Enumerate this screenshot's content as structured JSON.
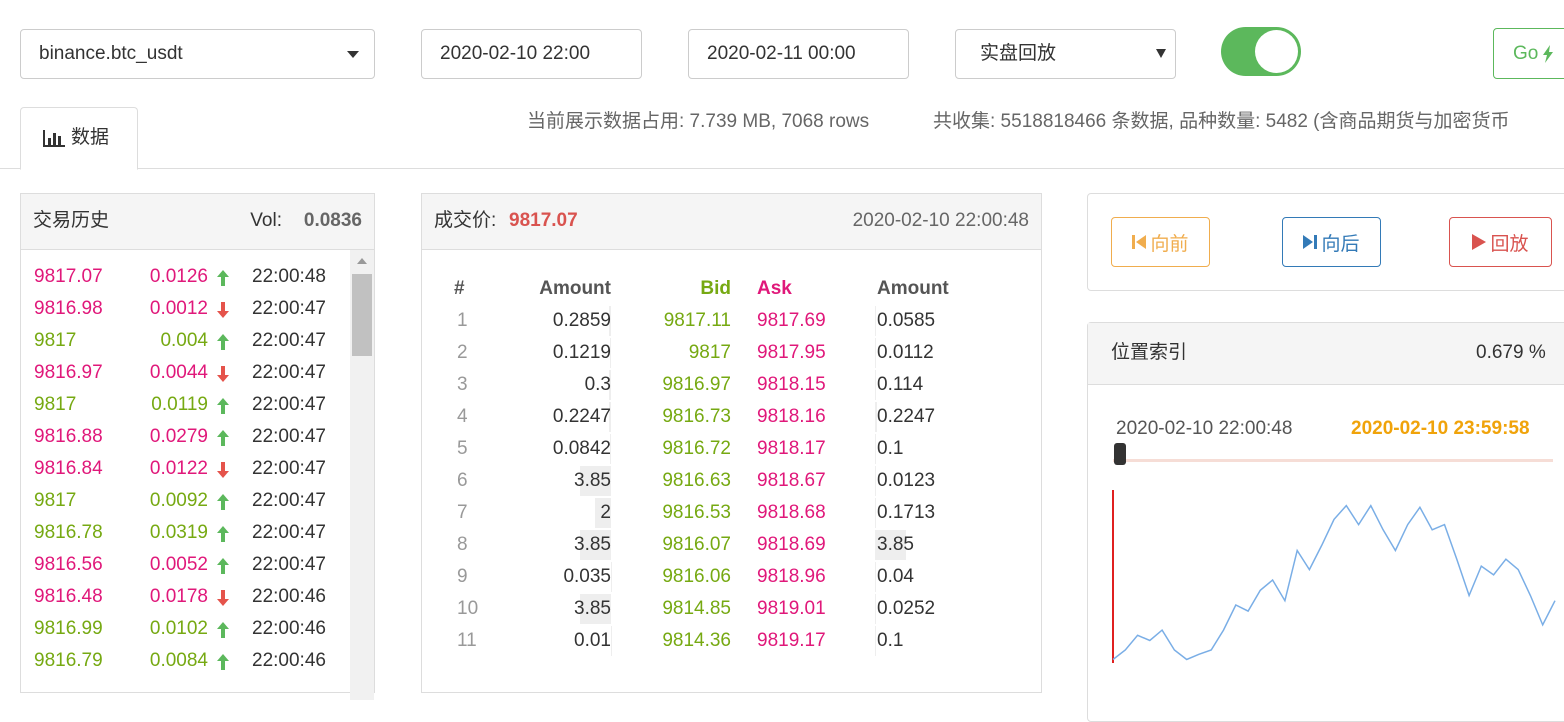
{
  "toolbar": {
    "exchange": "binance.btc_usdt",
    "start": "2020-02-10 22:00",
    "end": "2020-02-11 00:00",
    "mode": "实盘回放",
    "go": "Go"
  },
  "tab": "数据",
  "info": {
    "usage": "当前展示数据占用: 7.739 MB, 7068 rows",
    "collected": "共收集: 5518818466 条数据, 品种数量: 5482 (含商品期货与加密货币"
  },
  "trades": {
    "title": "交易历史",
    "vol_label": "Vol:",
    "vol": "0.0836",
    "rows": [
      {
        "price": "9817.07",
        "amount": "0.0126",
        "time": "22:00:48",
        "color": "#e0187a",
        "dir": "up"
      },
      {
        "price": "9816.98",
        "amount": "0.0012",
        "time": "22:00:47",
        "color": "#e0187a",
        "dir": "down"
      },
      {
        "price": "9817",
        "amount": "0.004",
        "time": "22:00:47",
        "color": "#76a912",
        "dir": "up"
      },
      {
        "price": "9816.97",
        "amount": "0.0044",
        "time": "22:00:47",
        "color": "#e0187a",
        "dir": "down"
      },
      {
        "price": "9817",
        "amount": "0.0119",
        "time": "22:00:47",
        "color": "#76a912",
        "dir": "up"
      },
      {
        "price": "9816.88",
        "amount": "0.0279",
        "time": "22:00:47",
        "color": "#e0187a",
        "dir": "up"
      },
      {
        "price": "9816.84",
        "amount": "0.0122",
        "time": "22:00:47",
        "color": "#e0187a",
        "dir": "down"
      },
      {
        "price": "9817",
        "amount": "0.0092",
        "time": "22:00:47",
        "color": "#76a912",
        "dir": "up"
      },
      {
        "price": "9816.78",
        "amount": "0.0319",
        "time": "22:00:47",
        "color": "#76a912",
        "dir": "up"
      },
      {
        "price": "9816.56",
        "amount": "0.0052",
        "time": "22:00:47",
        "color": "#e0187a",
        "dir": "up"
      },
      {
        "price": "9816.48",
        "amount": "0.0178",
        "time": "22:00:46",
        "color": "#e0187a",
        "dir": "down"
      },
      {
        "price": "9816.99",
        "amount": "0.0102",
        "time": "22:00:46",
        "color": "#76a912",
        "dir": "up"
      },
      {
        "price": "9816.79",
        "amount": "0.0084",
        "time": "22:00:46",
        "color": "#76a912",
        "dir": "up"
      }
    ]
  },
  "orderbook": {
    "price_label": "成交价:",
    "price": "9817.07",
    "time": "2020-02-10 22:00:48",
    "headers": [
      "#",
      "Amount",
      "Bid",
      "Ask",
      "Amount"
    ],
    "rows": [
      [
        1,
        0.2859,
        9817.11,
        9817.69,
        0.0585
      ],
      [
        2,
        0.1219,
        9817,
        9817.95,
        0.0112
      ],
      [
        3,
        0.3,
        9816.97,
        9818.15,
        0.114
      ],
      [
        4,
        0.2247,
        9816.73,
        9818.16,
        0.2247
      ],
      [
        5,
        0.0842,
        9816.72,
        9818.17,
        0.1
      ],
      [
        6,
        3.85,
        9816.63,
        9818.67,
        0.0123
      ],
      [
        7,
        2,
        9816.53,
        9818.68,
        0.1713
      ],
      [
        8,
        3.85,
        9816.07,
        9818.69,
        3.85
      ],
      [
        9,
        0.035,
        9816.06,
        9818.96,
        0.04
      ],
      [
        10,
        3.85,
        9814.85,
        9819.01,
        0.0252
      ],
      [
        11,
        0.01,
        9814.36,
        9819.17,
        0.1
      ]
    ]
  },
  "controls": {
    "back": "向前",
    "forward": "向后",
    "play": "回放"
  },
  "position": {
    "title": "位置索引",
    "percent": "0.679 %",
    "from": "2020-02-10 22:00:48",
    "to": "2020-02-10 23:59:58"
  },
  "sparkline": {
    "color": "#7aaee6",
    "ylim": [
      0,
      100
    ],
    "values": [
      2,
      7.5,
      16,
      13,
      19,
      7.5,
      2,
      5,
      7.5,
      19,
      33.5,
      30,
      42,
      48,
      36,
      65,
      54,
      68,
      83,
      91,
      80,
      91,
      77,
      65,
      80,
      90,
      77,
      80,
      60,
      39,
      56,
      51,
      60,
      54,
      39,
      22,
      36
    ]
  }
}
